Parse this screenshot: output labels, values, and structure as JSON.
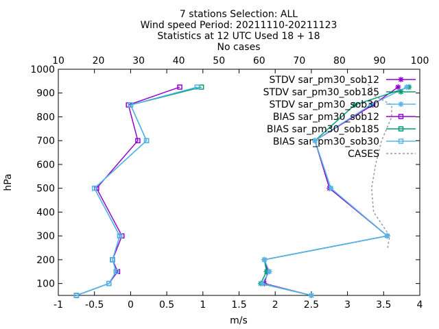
{
  "chart_data": {
    "type": "line",
    "title_lines": [
      "7 stations Selection: ALL",
      "Wind speed  Period: 20211110-20211123",
      "Statistics at 12 UTC  Used 18 + 18",
      "No cases"
    ],
    "xlabel": "m/s",
    "ylabel": "hPa",
    "xlim": [
      -1,
      4
    ],
    "x_ticks": [
      -1,
      -0.5,
      0,
      0.5,
      1,
      1.5,
      2,
      2.5,
      3,
      3.5,
      4
    ],
    "x_tick_labels": [
      "-1",
      "-0.5",
      "0",
      "0.5",
      "1",
      "1.5",
      "2",
      "2.5",
      "3",
      "3.5",
      "4"
    ],
    "x2lim": [
      10,
      100
    ],
    "x2_ticks": [
      10,
      20,
      30,
      40,
      50,
      60,
      70,
      80,
      90,
      100
    ],
    "x2_tick_labels": [
      "10",
      "20",
      "30",
      "40",
      "50",
      "60",
      "70",
      "80",
      "90",
      "100"
    ],
    "ylim": [
      1000,
      50
    ],
    "y_ticks": [
      100,
      200,
      300,
      400,
      500,
      600,
      700,
      800,
      900,
      1000
    ],
    "y_tick_labels": [
      "100",
      "200",
      "300",
      "400",
      "500",
      "600",
      "700",
      "800",
      "900",
      "1000"
    ],
    "legend_position": "top-right",
    "series": [
      {
        "name": "STDV sar_pm30_sob12",
        "color": "#9400d3",
        "marker": "star",
        "points": [
          [
            2.5,
            50
          ],
          [
            1.85,
            100
          ],
          [
            1.9,
            150
          ],
          [
            1.85,
            200
          ],
          [
            3.55,
            300
          ],
          [
            2.75,
            500
          ],
          [
            2.55,
            700
          ],
          [
            3.35,
            850
          ],
          [
            3.7,
            925
          ]
        ]
      },
      {
        "name": "STDV sar_pm30_sob185",
        "color": "#009e73",
        "marker": "star",
        "points": [
          [
            2.5,
            50
          ],
          [
            1.8,
            100
          ],
          [
            1.88,
            150
          ],
          [
            1.85,
            200
          ],
          [
            3.55,
            300
          ],
          [
            2.77,
            500
          ],
          [
            2.55,
            700
          ],
          [
            3.1,
            850
          ],
          [
            3.85,
            925
          ]
        ]
      },
      {
        "name": "STDV sar_pm30_sob30",
        "color": "#56b4e9",
        "marker": "star",
        "points": [
          [
            2.5,
            50
          ],
          [
            1.82,
            100
          ],
          [
            1.92,
            150
          ],
          [
            1.85,
            200
          ],
          [
            3.55,
            300
          ],
          [
            2.77,
            500
          ],
          [
            2.55,
            700
          ],
          [
            3.32,
            850
          ],
          [
            3.82,
            925
          ]
        ]
      },
      {
        "name": "BIAS sar_pm30_sob12",
        "color": "#9400d3",
        "marker": "square",
        "points": [
          [
            -0.75,
            50
          ],
          [
            -0.3,
            100
          ],
          [
            -0.18,
            150
          ],
          [
            -0.25,
            200
          ],
          [
            -0.12,
            300
          ],
          [
            -0.47,
            500
          ],
          [
            0.1,
            700
          ],
          [
            -0.03,
            850
          ],
          [
            0.68,
            925
          ]
        ]
      },
      {
        "name": "BIAS sar_pm30_sob185",
        "color": "#009e73",
        "marker": "square",
        "points": [
          [
            -0.75,
            50
          ],
          [
            -0.3,
            100
          ],
          [
            -0.2,
            150
          ],
          [
            -0.25,
            200
          ],
          [
            -0.15,
            300
          ],
          [
            -0.5,
            500
          ],
          [
            0.22,
            700
          ],
          [
            0.0,
            850
          ],
          [
            0.98,
            925
          ]
        ]
      },
      {
        "name": "BIAS sar_pm30_sob30",
        "color": "#56b4e9",
        "marker": "square",
        "points": [
          [
            -0.75,
            50
          ],
          [
            -0.3,
            100
          ],
          [
            -0.2,
            150
          ],
          [
            -0.25,
            200
          ],
          [
            -0.15,
            300
          ],
          [
            -0.5,
            500
          ],
          [
            0.22,
            700
          ],
          [
            0.0,
            850
          ],
          [
            0.92,
            925
          ]
        ]
      }
    ],
    "cases": {
      "name": "CASES",
      "color": "#999999",
      "axis": "x2",
      "points": [
        [
          92,
          250
        ],
        [
          92.5,
          300
        ],
        [
          88.5,
          400
        ],
        [
          88,
          500
        ],
        [
          89,
          600
        ],
        [
          90.5,
          700
        ],
        [
          93,
          800
        ],
        [
          93,
          850
        ],
        [
          87.5,
          900
        ],
        [
          88,
          925
        ],
        [
          86,
          950
        ]
      ]
    }
  }
}
